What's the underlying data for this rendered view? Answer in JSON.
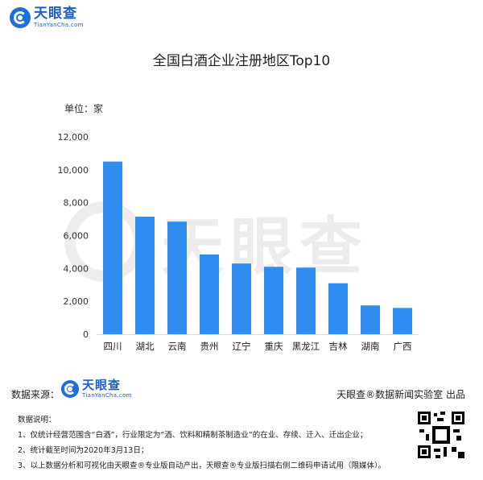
{
  "brand": {
    "name_cn": "天眼查",
    "name_en": "TianYanCha.com"
  },
  "title": "全国白酒企业注册地区Top10",
  "unit_label": "单位：家",
  "chart_data": {
    "type": "bar",
    "title": "全国白酒企业注册地区Top10",
    "categories": [
      "四川",
      "湖北",
      "云南",
      "贵州",
      "辽宁",
      "重庆",
      "黑龙江",
      "吉林",
      "湖南",
      "广西"
    ],
    "values": [
      10500,
      7150,
      6850,
      4850,
      4300,
      4100,
      4050,
      3100,
      1750,
      1600
    ],
    "ylim": [
      0,
      12000
    ],
    "yticks": [
      0,
      2000,
      4000,
      6000,
      8000,
      10000,
      12000
    ],
    "ytick_labels": [
      "0",
      "2,000",
      "4,000",
      "6,000",
      "8,000",
      "10,000",
      "12,000"
    ],
    "bar_color": "#2f8cf0",
    "grid": false,
    "legend": "none"
  },
  "footer": {
    "source_label": "数据来源：",
    "publisher": "天眼查®数据新闻实验室 出品",
    "notes_title": "数据说明：",
    "notes": [
      "1、仅统计经营范围含“白酒”，行业限定为“酒、饮料和精制茶制造业”的在业、存续、迁入、迁出企业；",
      "2、统计截至时间为2020年3月13日；",
      "3、以上数据分析和可视化由天眼查®专业版自动产出，天眼查®专业版扫描右侧二维码申请试用（限媒体）。"
    ]
  }
}
